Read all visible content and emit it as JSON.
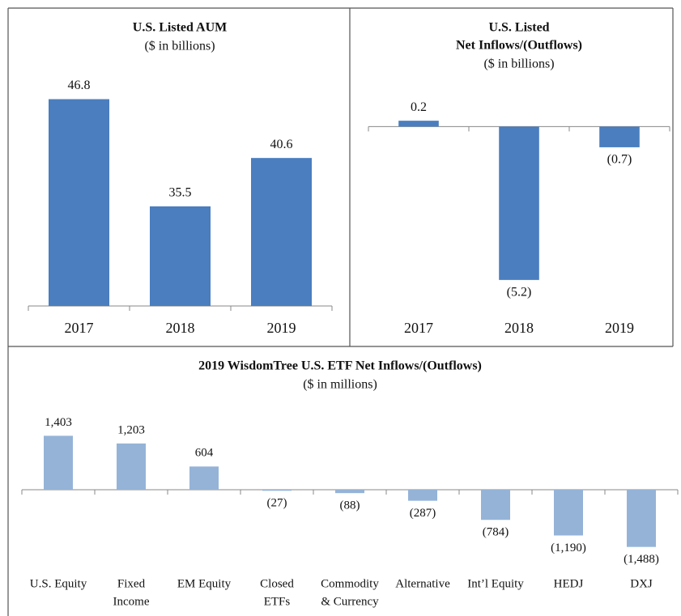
{
  "chart_data": [
    {
      "type": "bar",
      "title": "U.S. Listed AUM",
      "subtitle": "($ in billions)",
      "categories": [
        "2017",
        "2018",
        "2019"
      ],
      "values": [
        46.8,
        35.5,
        40.6
      ],
      "value_labels": [
        "46.8",
        "35.5",
        "40.6"
      ],
      "color": "#4a7ebf",
      "ylim": [
        25,
        50
      ]
    },
    {
      "type": "bar",
      "title": [
        "U.S. Listed",
        "Net Inflows/(Outflows)"
      ],
      "subtitle": "($ in billions)",
      "categories": [
        "2017",
        "2018",
        "2019"
      ],
      "values": [
        0.2,
        -5.2,
        -0.7
      ],
      "value_labels": [
        "0.2",
        "(5.2)",
        "(0.7)"
      ],
      "color": "#4a7ebf",
      "ylim": [
        -6,
        1
      ]
    },
    {
      "type": "bar",
      "title": "2019 WisdomTree U.S. ETF Net Inflows/(Outflows)",
      "subtitle": "($ in millions)",
      "categories": [
        [
          "U.S. Equity"
        ],
        [
          "Fixed",
          "Income"
        ],
        [
          "EM Equity"
        ],
        [
          "Closed",
          "ETFs"
        ],
        [
          "Commodity",
          "& Currency"
        ],
        [
          "Alternative"
        ],
        [
          "Int’l Equity"
        ],
        [
          "HEDJ"
        ],
        [
          "DXJ"
        ]
      ],
      "values": [
        1403,
        1203,
        604,
        -27,
        -88,
        -287,
        -784,
        -1190,
        -1488
      ],
      "value_labels": [
        "1,403",
        "1,203",
        "604",
        "(27)",
        "(88)",
        "(287)",
        "(784)",
        "(1,190)",
        "(1,488)"
      ],
      "color": "#95b3d7",
      "ylim": [
        -2000,
        2000
      ]
    }
  ]
}
